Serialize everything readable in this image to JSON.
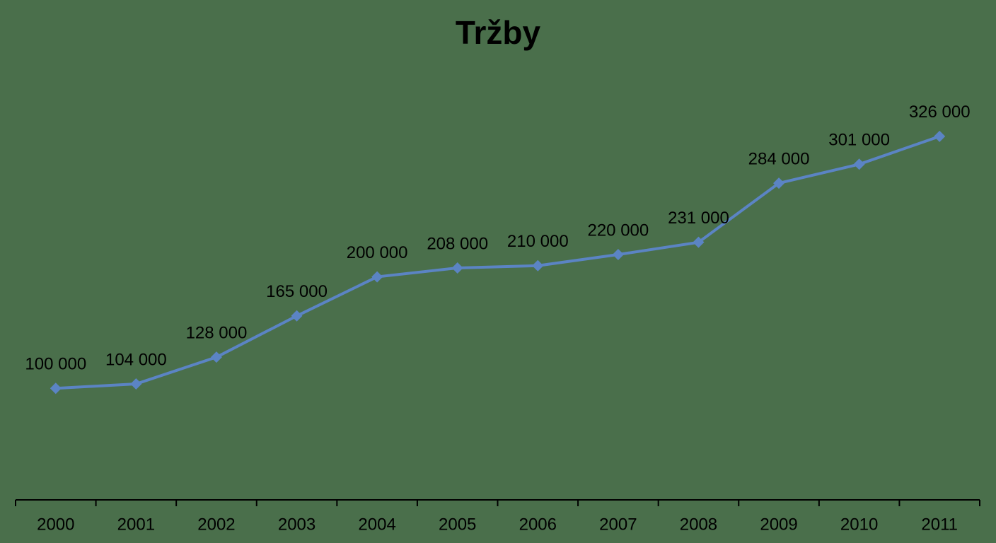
{
  "chart_data": {
    "type": "line",
    "title": "Tržby",
    "categories": [
      "2000",
      "2001",
      "2002",
      "2003",
      "2004",
      "2005",
      "2006",
      "2007",
      "2008",
      "2009",
      "2010",
      "2011"
    ],
    "values": [
      100000,
      104000,
      128000,
      165000,
      200000,
      208000,
      210000,
      220000,
      231000,
      284000,
      301000,
      326000
    ],
    "value_labels": [
      "100 000",
      "104 000",
      "128 000",
      "165 000",
      "200 000",
      "208 000",
      "210 000",
      "220 000",
      "231 000",
      "284 000",
      "301 000",
      "326 000"
    ],
    "color": "#5b84c4",
    "ylim": [
      0,
      350000
    ]
  }
}
